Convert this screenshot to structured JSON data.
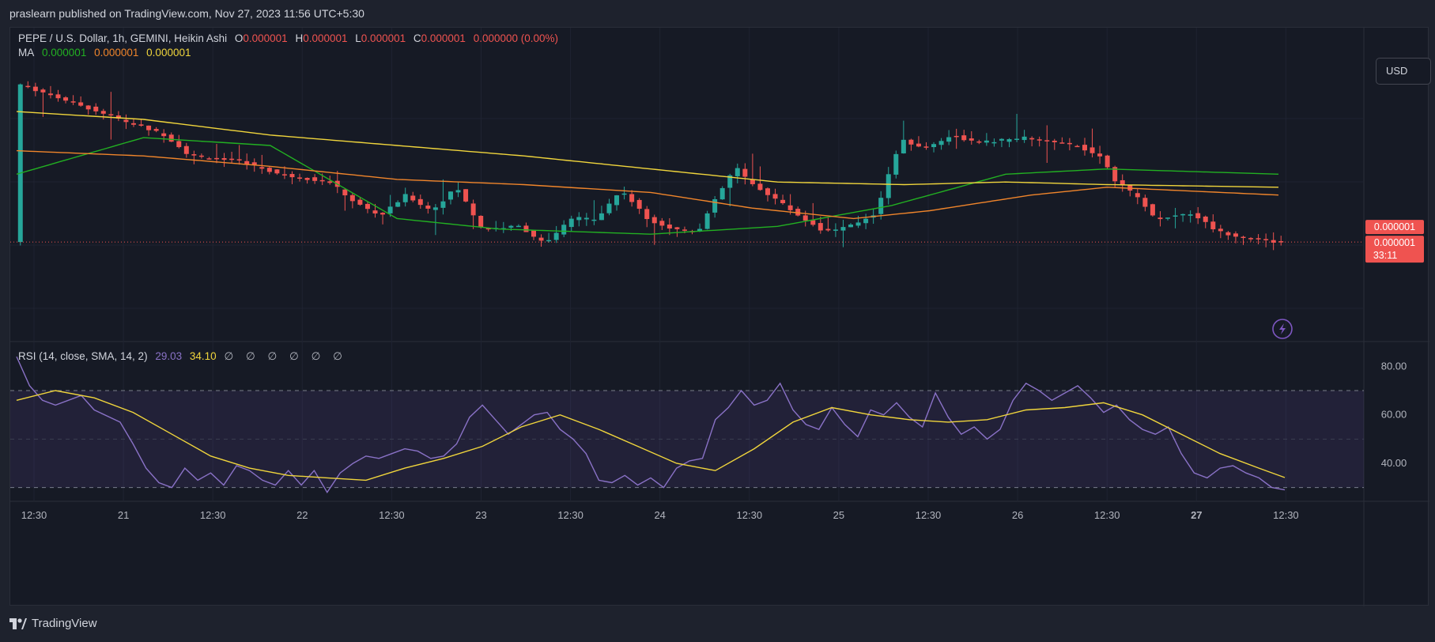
{
  "header": {
    "published": "praslearn published on TradingView.com, Nov 27, 2023 11:56 UTC+5:30"
  },
  "legend": {
    "symbol": "PEPE / U.S. Dollar, 1h, GEMINI, Heikin Ashi",
    "o_label": "O",
    "o_value": "0.000001",
    "h_label": "H",
    "h_value": "0.000001",
    "l_label": "L",
    "l_value": "0.000001",
    "c_label": "C",
    "c_value": "0.000001",
    "change": "0.000000 (0.00%)",
    "ma_label": "MA",
    "ma_values": [
      "0.000001",
      "0.000001",
      "0.000001"
    ]
  },
  "rsi_legend": {
    "label": "RSI (14, close, SMA, 14, 2)",
    "rsi": "29.03",
    "sma": "34.10",
    "empty_marks": [
      "∅",
      "∅",
      "∅",
      "∅",
      "∅",
      "∅"
    ]
  },
  "currency_button": "USD",
  "price_tags": {
    "ma": "0.000001",
    "last": "0.000001",
    "countdown": "33:11"
  },
  "footer": {
    "brand": "TradingView"
  },
  "colors": {
    "up": "#26a69a",
    "down": "#ef5350",
    "ma1": "#22b022",
    "ma2": "#f0852b",
    "ma3": "#f0d53c",
    "rsi": "#8a72c7",
    "rsi_sma": "#f0d53c",
    "bg": "#161a25"
  },
  "chart_data": {
    "type": "candlestick",
    "x_tick_labels": [
      "12:30",
      "21",
      "12:30",
      "22",
      "12:30",
      "23",
      "12:30",
      "24",
      "12:30",
      "25",
      "12:30",
      "26",
      "12:30",
      "27",
      "12:30"
    ],
    "bold_tick": "27",
    "rsi_axis_labels": [
      "80.00",
      "60.00",
      "40.00"
    ],
    "rsi_levels": [
      70,
      50,
      30
    ],
    "rsi_range": [
      24,
      86
    ],
    "price_range": [
      0,
      100
    ],
    "price_shape_normalized": [
      [
        0.2,
        94
      ],
      [
        5,
        86
      ],
      [
        9,
        79
      ],
      [
        12,
        74
      ],
      [
        14,
        66
      ],
      [
        18,
        64
      ],
      [
        21,
        59
      ],
      [
        25,
        56
      ],
      [
        27,
        48
      ],
      [
        29,
        43
      ],
      [
        31,
        51
      ],
      [
        33,
        45
      ],
      [
        35,
        54
      ],
      [
        37,
        38
      ],
      [
        40,
        39
      ],
      [
        42,
        32
      ],
      [
        44,
        42
      ],
      [
        46,
        42
      ],
      [
        48,
        53
      ],
      [
        50,
        42
      ],
      [
        52,
        38
      ],
      [
        54,
        37
      ],
      [
        55,
        46
      ],
      [
        57,
        62
      ],
      [
        58,
        56
      ],
      [
        60,
        50
      ],
      [
        62,
        43
      ],
      [
        64,
        37
      ],
      [
        66,
        39
      ],
      [
        68,
        44
      ],
      [
        70,
        72
      ],
      [
        72,
        69
      ],
      [
        74,
        74
      ],
      [
        76,
        71
      ],
      [
        78,
        72
      ],
      [
        80,
        73
      ],
      [
        82,
        71
      ],
      [
        84,
        70
      ],
      [
        86,
        65
      ],
      [
        87,
        56
      ],
      [
        89,
        49
      ],
      [
        90,
        42
      ],
      [
        93,
        44
      ],
      [
        95,
        37
      ],
      [
        97,
        35
      ],
      [
        99.5,
        33
      ]
    ],
    "ma_shapes_normalized": {
      "ma1": [
        [
          0,
          59
        ],
        [
          10,
          73
        ],
        [
          20,
          70
        ],
        [
          30,
          42
        ],
        [
          38,
          38
        ],
        [
          50,
          36
        ],
        [
          60,
          39
        ],
        [
          69,
          47
        ],
        [
          78,
          59
        ],
        [
          86,
          61
        ],
        [
          99.5,
          59
        ]
      ],
      "ma2": [
        [
          0,
          68
        ],
        [
          10,
          66
        ],
        [
          20,
          62
        ],
        [
          30,
          57
        ],
        [
          40,
          55
        ],
        [
          50,
          52
        ],
        [
          58,
          46
        ],
        [
          66,
          42
        ],
        [
          72,
          45
        ],
        [
          80,
          51
        ],
        [
          86,
          54
        ],
        [
          99.5,
          51
        ]
      ],
      "ma3": [
        [
          0,
          83
        ],
        [
          10,
          80
        ],
        [
          20,
          74
        ],
        [
          30,
          70
        ],
        [
          40,
          66
        ],
        [
          50,
          61
        ],
        [
          60,
          56
        ],
        [
          70,
          55
        ],
        [
          78,
          56
        ],
        [
          86,
          55
        ],
        [
          99.5,
          54
        ]
      ]
    },
    "rsi_series": [
      [
        0,
        84
      ],
      [
        1,
        72
      ],
      [
        2,
        66
      ],
      [
        3,
        64
      ],
      [
        5,
        68
      ],
      [
        6,
        62
      ],
      [
        8,
        57
      ],
      [
        9,
        48
      ],
      [
        10,
        38
      ],
      [
        11,
        32
      ],
      [
        12,
        30
      ],
      [
        13,
        38
      ],
      [
        14,
        33
      ],
      [
        15,
        36
      ],
      [
        16,
        31
      ],
      [
        17,
        39
      ],
      [
        18,
        37
      ],
      [
        19,
        33
      ],
      [
        20,
        31
      ],
      [
        21,
        37
      ],
      [
        22,
        31
      ],
      [
        23,
        37
      ],
      [
        24,
        28
      ],
      [
        25,
        36
      ],
      [
        26,
        40
      ],
      [
        27,
        43
      ],
      [
        28,
        42
      ],
      [
        29,
        44
      ],
      [
        30,
        46
      ],
      [
        31,
        45
      ],
      [
        32,
        42
      ],
      [
        33,
        43
      ],
      [
        34,
        48
      ],
      [
        35,
        59
      ],
      [
        36,
        64
      ],
      [
        37,
        58
      ],
      [
        38,
        52
      ],
      [
        39,
        56
      ],
      [
        40,
        60
      ],
      [
        41,
        61
      ],
      [
        42,
        54
      ],
      [
        43,
        50
      ],
      [
        44,
        44
      ],
      [
        45,
        33
      ],
      [
        46,
        32
      ],
      [
        47,
        35
      ],
      [
        48,
        31
      ],
      [
        49,
        34
      ],
      [
        50,
        30
      ],
      [
        51,
        38
      ],
      [
        52,
        41
      ],
      [
        53,
        42
      ],
      [
        54,
        58
      ],
      [
        55,
        63
      ],
      [
        56,
        70
      ],
      [
        57,
        64
      ],
      [
        58,
        66
      ],
      [
        59,
        73
      ],
      [
        60,
        62
      ],
      [
        61,
        56
      ],
      [
        62,
        54
      ],
      [
        63,
        63
      ],
      [
        64,
        56
      ],
      [
        65,
        51
      ],
      [
        66,
        62
      ],
      [
        67,
        60
      ],
      [
        68,
        65
      ],
      [
        69,
        59
      ],
      [
        70,
        55
      ],
      [
        71,
        69
      ],
      [
        72,
        59
      ],
      [
        73,
        52
      ],
      [
        74,
        55
      ],
      [
        75,
        50
      ],
      [
        76,
        54
      ],
      [
        77,
        66
      ],
      [
        78,
        73
      ],
      [
        79,
        70
      ],
      [
        80,
        66
      ],
      [
        81,
        69
      ],
      [
        82,
        72
      ],
      [
        83,
        67
      ],
      [
        84,
        61
      ],
      [
        85,
        64
      ],
      [
        86,
        58
      ],
      [
        87,
        54
      ],
      [
        88,
        52
      ],
      [
        89,
        55
      ],
      [
        90,
        44
      ],
      [
        91,
        36
      ],
      [
        92,
        34
      ],
      [
        93,
        38
      ],
      [
        94,
        39
      ],
      [
        95,
        36
      ],
      [
        96,
        34
      ],
      [
        97,
        30
      ],
      [
        98,
        29.03
      ]
    ],
    "rsi_sma_series": [
      [
        0,
        66
      ],
      [
        3,
        70
      ],
      [
        6,
        67
      ],
      [
        9,
        61
      ],
      [
        12,
        52
      ],
      [
        15,
        43
      ],
      [
        18,
        38
      ],
      [
        21,
        35
      ],
      [
        24,
        34
      ],
      [
        27,
        33
      ],
      [
        30,
        38
      ],
      [
        33,
        42
      ],
      [
        36,
        47
      ],
      [
        39,
        55
      ],
      [
        42,
        60
      ],
      [
        45,
        54
      ],
      [
        48,
        47
      ],
      [
        51,
        40
      ],
      [
        54,
        37
      ],
      [
        57,
        46
      ],
      [
        60,
        57
      ],
      [
        63,
        63
      ],
      [
        66,
        60
      ],
      [
        69,
        58
      ],
      [
        72,
        57
      ],
      [
        75,
        58
      ],
      [
        78,
        62
      ],
      [
        81,
        63
      ],
      [
        84,
        65
      ],
      [
        87,
        60
      ],
      [
        90,
        52
      ],
      [
        93,
        44
      ],
      [
        96,
        38
      ],
      [
        98,
        34.1
      ]
    ]
  }
}
